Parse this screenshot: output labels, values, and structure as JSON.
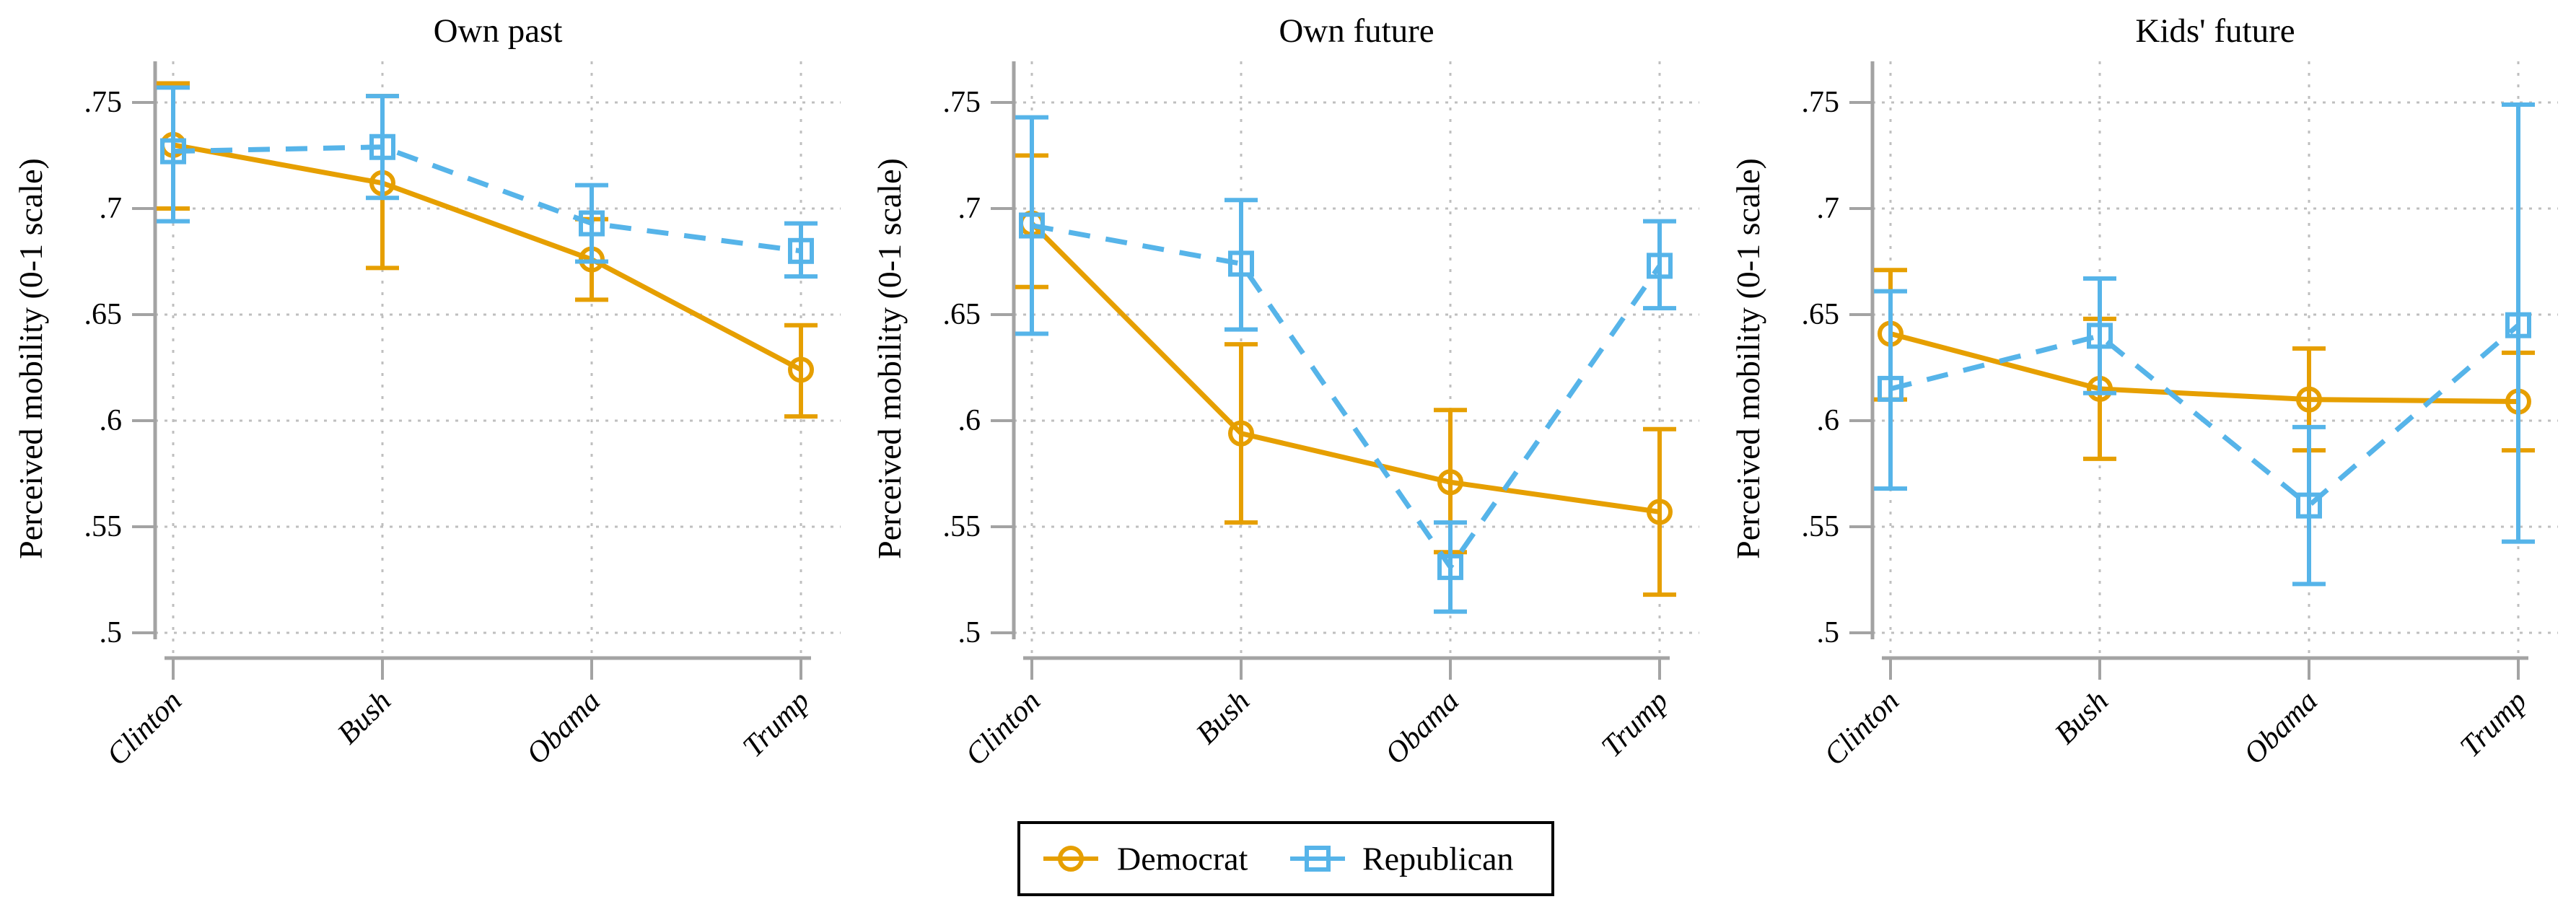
{
  "axes": {
    "ylabel": "Perceived mobility (0-1 scale)",
    "ylim": [
      0.5,
      0.75
    ],
    "ytick_values": [
      0.5,
      0.55,
      0.6,
      0.65,
      0.7,
      0.75
    ],
    "ytick_labels": [
      ".5",
      ".55",
      ".6",
      ".65",
      ".7",
      ".75"
    ],
    "categories": [
      "Clinton",
      "Bush",
      "Obama",
      "Trump"
    ],
    "grid": "dotted"
  },
  "colors": {
    "democrat": "#E69F00",
    "republican": "#56B4E9",
    "gridline": "#bfbfbf",
    "axis": "#a3a3a3",
    "text": "#000000"
  },
  "legend": {
    "position": "bottom-center",
    "items": [
      {
        "label": "Democrat",
        "color": "#E69F00",
        "marker": "circle"
      },
      {
        "label": "Republican",
        "color": "#56B4E9",
        "marker": "square"
      }
    ]
  },
  "chart_data": [
    {
      "type": "line",
      "title": "Own past",
      "xlabel": "",
      "ylabel": "Perceived mobility (0-1 scale)",
      "ylim": [
        0.5,
        0.75
      ],
      "categories": [
        "Clinton",
        "Bush",
        "Obama",
        "Trump"
      ],
      "series": [
        {
          "name": "Democrat",
          "color": "#E69F00",
          "marker": "circle",
          "line_style": "solid",
          "values": [
            0.73,
            0.712,
            0.676,
            0.624
          ],
          "ci_low": [
            0.7,
            0.672,
            0.657,
            0.602
          ],
          "ci_high": [
            0.759,
            0.753,
            0.695,
            0.645
          ]
        },
        {
          "name": "Republican",
          "color": "#56B4E9",
          "marker": "square",
          "line_style": "dashed",
          "values": [
            0.727,
            0.729,
            0.693,
            0.68
          ],
          "ci_low": [
            0.694,
            0.705,
            0.675,
            0.668
          ],
          "ci_high": [
            0.757,
            0.753,
            0.711,
            0.693
          ]
        }
      ]
    },
    {
      "type": "line",
      "title": "Own future",
      "xlabel": "",
      "ylabel": "Perceived mobility (0-1 scale)",
      "ylim": [
        0.5,
        0.75
      ],
      "categories": [
        "Clinton",
        "Bush",
        "Obama",
        "Trump"
      ],
      "series": [
        {
          "name": "Democrat",
          "color": "#E69F00",
          "marker": "circle",
          "line_style": "solid",
          "values": [
            0.693,
            0.594,
            0.571,
            0.557
          ],
          "ci_low": [
            0.663,
            0.552,
            0.538,
            0.518
          ],
          "ci_high": [
            0.725,
            0.636,
            0.605,
            0.596
          ]
        },
        {
          "name": "Republican",
          "color": "#56B4E9",
          "marker": "square",
          "line_style": "dashed",
          "values": [
            0.692,
            0.674,
            0.531,
            0.673
          ],
          "ci_low": [
            0.641,
            0.643,
            0.51,
            0.653
          ],
          "ci_high": [
            0.743,
            0.704,
            0.552,
            0.694
          ]
        }
      ]
    },
    {
      "type": "line",
      "title": "Kids' future",
      "xlabel": "",
      "ylabel": "Perceived mobility (0-1 scale)",
      "ylim": [
        0.5,
        0.75
      ],
      "categories": [
        "Clinton",
        "Bush",
        "Obama",
        "Trump"
      ],
      "series": [
        {
          "name": "Democrat",
          "color": "#E69F00",
          "marker": "circle",
          "line_style": "solid",
          "values": [
            0.641,
            0.615,
            0.61,
            0.609
          ],
          "ci_low": [
            0.61,
            0.582,
            0.586,
            0.586
          ],
          "ci_high": [
            0.671,
            0.648,
            0.634,
            0.632
          ]
        },
        {
          "name": "Republican",
          "color": "#56B4E9",
          "marker": "square",
          "line_style": "dashed",
          "values": [
            0.615,
            0.64,
            0.56,
            0.645
          ],
          "ci_low": [
            0.568,
            0.613,
            0.523,
            0.543
          ],
          "ci_high": [
            0.661,
            0.667,
            0.597,
            0.749
          ]
        }
      ]
    }
  ]
}
